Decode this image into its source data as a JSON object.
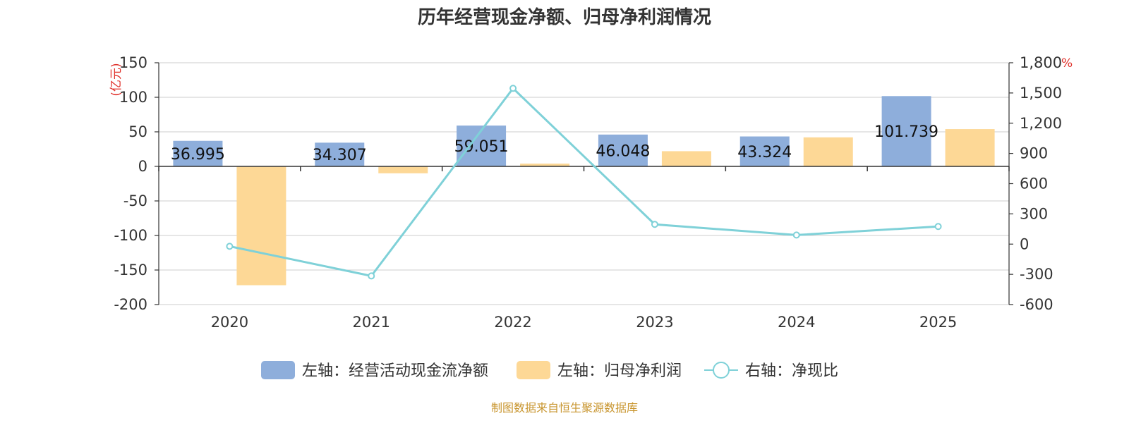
{
  "title": "历年经营现金净额、归母净利润情况",
  "source": "制图数据来自恒生聚源数据库",
  "colors": {
    "cash_flow": "#8eaedb",
    "net_profit": "#fdd896",
    "ratio": "#7fd1d8",
    "unit": "#e0312b",
    "source": "#c8952e"
  },
  "chart_data": {
    "type": "bar",
    "categories": [
      "2020",
      "2021",
      "2022",
      "2023",
      "2024",
      "2025"
    ],
    "series": [
      {
        "name": "左轴：经营活动现金流净额",
        "type": "bar",
        "axis": "left",
        "values": [
          36.995,
          34.307,
          59.051,
          46.048,
          43.324,
          101.739
        ],
        "labels": [
          "36.995",
          "34.307",
          "59.051",
          "46.048",
          "43.324",
          "101.739"
        ]
      },
      {
        "name": "左轴：归母净利润",
        "type": "bar",
        "axis": "left",
        "values": [
          -172,
          -10,
          4,
          22,
          42,
          54
        ]
      },
      {
        "name": "右轴：净现比",
        "type": "line",
        "axis": "right",
        "values": [
          -22,
          -316,
          1546,
          196,
          90,
          175
        ]
      }
    ],
    "left_axis": {
      "unit": "(亿元)",
      "min": -200,
      "max": 150,
      "ticks": [
        150,
        100,
        50,
        0,
        -50,
        -100,
        -150,
        -200
      ],
      "tick_labels": [
        "150",
        "100",
        "50",
        "0",
        "-50",
        "-100",
        "-150",
        "-200"
      ]
    },
    "right_axis": {
      "unit": "%",
      "min": -600,
      "max": 1800,
      "ticks": [
        1800,
        1500,
        1200,
        900,
        600,
        300,
        0,
        -300,
        -600
      ],
      "tick_labels": [
        "1,800",
        "1,500",
        "1,200",
        "900",
        "600",
        "300",
        "0",
        "-300",
        "-600"
      ]
    },
    "grid": true,
    "legend_position": "bottom"
  }
}
